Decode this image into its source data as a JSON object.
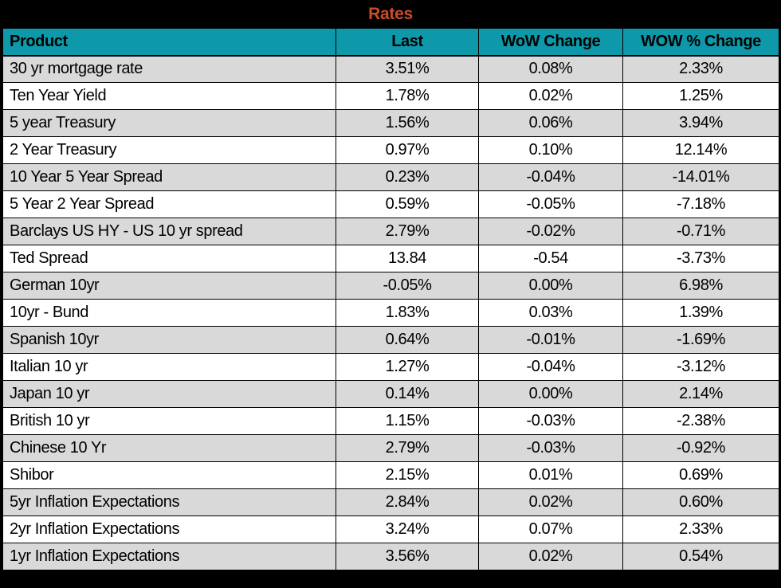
{
  "title": "Rates",
  "colors": {
    "title_bar_bg": "#000000",
    "title_text": "#CC4B2D",
    "header_bg": "#0D99A9",
    "header_text": "#000000",
    "row_alt_bg": "#D9D9D9",
    "row_bg": "#FFFFFF",
    "grid_border": "#000000"
  },
  "table": {
    "columns": [
      "Product",
      "Last",
      "WoW Change",
      "WOW % Change"
    ],
    "rows": [
      [
        "30 yr mortgage rate",
        "3.51%",
        "0.08%",
        "2.33%"
      ],
      [
        "Ten Year Yield",
        "1.78%",
        "0.02%",
        "1.25%"
      ],
      [
        "5 year Treasury",
        "1.56%",
        "0.06%",
        "3.94%"
      ],
      [
        "2 Year Treasury",
        "0.97%",
        "0.10%",
        "12.14%"
      ],
      [
        "10 Year 5 Year Spread",
        "0.23%",
        "-0.04%",
        "-14.01%"
      ],
      [
        "5 Year 2 Year Spread",
        "0.59%",
        "-0.05%",
        "-7.18%"
      ],
      [
        "Barclays US HY - US 10 yr spread",
        "2.79%",
        "-0.02%",
        "-0.71%"
      ],
      [
        "Ted Spread",
        "13.84",
        "-0.54",
        "-3.73%"
      ],
      [
        "German 10yr",
        "-0.05%",
        "0.00%",
        "6.98%"
      ],
      [
        "10yr - Bund",
        "1.83%",
        "0.03%",
        "1.39%"
      ],
      [
        "Spanish 10yr",
        "0.64%",
        "-0.01%",
        "-1.69%"
      ],
      [
        "Italian 10 yr",
        "1.27%",
        "-0.04%",
        "-3.12%"
      ],
      [
        "Japan 10 yr",
        "0.14%",
        "0.00%",
        "2.14%"
      ],
      [
        "British 10 yr",
        "1.15%",
        "-0.03%",
        "-2.38%"
      ],
      [
        "Chinese 10 Yr",
        "2.79%",
        "-0.03%",
        "-0.92%"
      ],
      [
        "Shibor",
        "2.15%",
        "0.01%",
        "0.69%"
      ],
      [
        "5yr Inflation Expectations",
        "2.84%",
        "0.02%",
        "0.60%"
      ],
      [
        "2yr Inflation Expectations",
        "3.24%",
        "0.07%",
        "2.33%"
      ],
      [
        "1yr Inflation Expectations",
        "3.56%",
        "0.02%",
        "0.54%"
      ]
    ]
  },
  "chart_data": {
    "type": "table",
    "title": "Rates",
    "columns": [
      "Product",
      "Last",
      "WoW Change",
      "WOW % Change"
    ],
    "rows": [
      {
        "product": "30 yr mortgage rate",
        "last": "3.51%",
        "wow_change": "0.08%",
        "wow_pct_change": "2.33%"
      },
      {
        "product": "Ten Year Yield",
        "last": "1.78%",
        "wow_change": "0.02%",
        "wow_pct_change": "1.25%"
      },
      {
        "product": "5 year Treasury",
        "last": "1.56%",
        "wow_change": "0.06%",
        "wow_pct_change": "3.94%"
      },
      {
        "product": "2 Year Treasury",
        "last": "0.97%",
        "wow_change": "0.10%",
        "wow_pct_change": "12.14%"
      },
      {
        "product": "10 Year 5 Year Spread",
        "last": "0.23%",
        "wow_change": "-0.04%",
        "wow_pct_change": "-14.01%"
      },
      {
        "product": "5 Year 2 Year Spread",
        "last": "0.59%",
        "wow_change": "-0.05%",
        "wow_pct_change": "-7.18%"
      },
      {
        "product": "Barclays US HY - US 10 yr spread",
        "last": "2.79%",
        "wow_change": "-0.02%",
        "wow_pct_change": "-0.71%"
      },
      {
        "product": "Ted Spread",
        "last": "13.84",
        "wow_change": "-0.54",
        "wow_pct_change": "-3.73%"
      },
      {
        "product": "German 10yr",
        "last": "-0.05%",
        "wow_change": "0.00%",
        "wow_pct_change": "6.98%"
      },
      {
        "product": "10yr - Bund",
        "last": "1.83%",
        "wow_change": "0.03%",
        "wow_pct_change": "1.39%"
      },
      {
        "product": "Spanish 10yr",
        "last": "0.64%",
        "wow_change": "-0.01%",
        "wow_pct_change": "-1.69%"
      },
      {
        "product": "Italian 10 yr",
        "last": "1.27%",
        "wow_change": "-0.04%",
        "wow_pct_change": "-3.12%"
      },
      {
        "product": "Japan 10 yr",
        "last": "0.14%",
        "wow_change": "0.00%",
        "wow_pct_change": "2.14%"
      },
      {
        "product": "British 10 yr",
        "last": "1.15%",
        "wow_change": "-0.03%",
        "wow_pct_change": "-2.38%"
      },
      {
        "product": "Chinese 10 Yr",
        "last": "2.79%",
        "wow_change": "-0.03%",
        "wow_pct_change": "-0.92%"
      },
      {
        "product": "Shibor",
        "last": "2.15%",
        "wow_change": "0.01%",
        "wow_pct_change": "0.69%"
      },
      {
        "product": "5yr Inflation Expectations",
        "last": "2.84%",
        "wow_change": "0.02%",
        "wow_pct_change": "0.60%"
      },
      {
        "product": "2yr Inflation Expectations",
        "last": "3.24%",
        "wow_change": "0.07%",
        "wow_pct_change": "2.33%"
      },
      {
        "product": "1yr Inflation Expectations",
        "last": "3.56%",
        "wow_change": "0.02%",
        "wow_pct_change": "0.54%"
      }
    ]
  }
}
